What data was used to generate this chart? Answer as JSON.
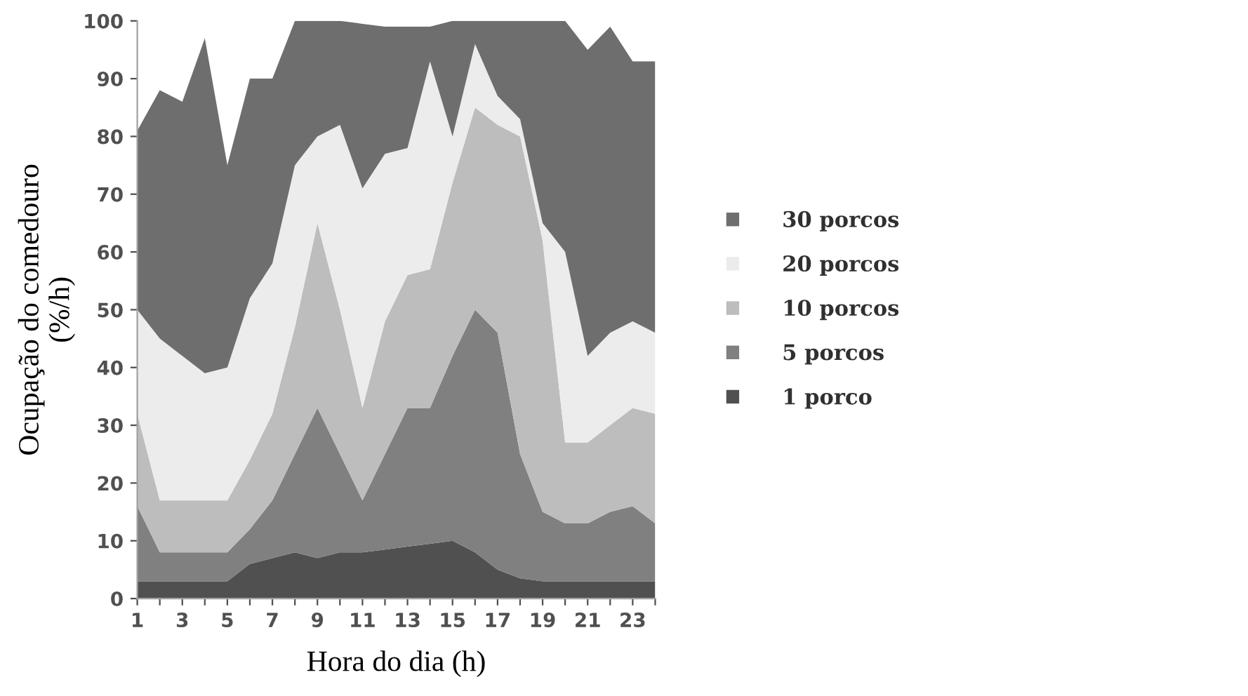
{
  "chart_data": {
    "type": "area",
    "stacked": true,
    "xlabel": "Hora do dia (h)",
    "ylabel": "Ocupação do comedouro\n(%/h)",
    "categories": [
      "1",
      null,
      "3",
      null,
      "5",
      null,
      "7",
      null,
      "9",
      null,
      "11",
      null,
      "13",
      null,
      "15",
      null,
      "17",
      null,
      "19",
      null,
      "21",
      null,
      "23",
      null
    ],
    "ylim": [
      0,
      100
    ],
    "yticks": [
      0,
      10,
      20,
      30,
      40,
      50,
      60,
      70,
      80,
      90,
      100
    ],
    "grid": false,
    "legend": "right",
    "series": [
      {
        "name": "1 porco",
        "color": "#505050",
        "values": [
          3,
          3,
          3,
          3,
          3,
          6,
          7,
          8,
          7,
          8,
          8,
          8.5,
          9,
          9.5,
          10,
          8,
          5,
          3.5,
          3,
          3,
          3,
          3,
          3,
          3
        ]
      },
      {
        "name": "5 porcos",
        "color": "#808080",
        "values": [
          13,
          5,
          5,
          5,
          5,
          6,
          10,
          17,
          26,
          17,
          9,
          16.5,
          24,
          23.5,
          32,
          42,
          41,
          21.5,
          12,
          10,
          10,
          12,
          13,
          10
        ]
      },
      {
        "name": "10 porcos",
        "color": "#bdbdbd",
        "values": [
          16,
          9,
          9,
          9,
          9,
          12,
          15,
          22,
          32,
          25,
          16,
          23,
          23,
          24,
          30,
          35,
          36,
          55,
          47,
          14,
          14,
          15,
          17,
          19
        ]
      },
      {
        "name": "20 porcos",
        "color": "#ececec",
        "values": [
          18,
          28,
          25,
          22,
          23,
          28,
          26,
          28,
          15,
          32,
          38,
          29,
          22,
          36,
          8,
          11,
          5,
          3,
          3,
          33,
          15,
          16,
          15,
          14
        ]
      },
      {
        "name": "30 porcos",
        "color": "#6e6e6e",
        "values": [
          31,
          43,
          44,
          58,
          35,
          38,
          32,
          25,
          20,
          18,
          28.5,
          22,
          21,
          6,
          20,
          4,
          13,
          17,
          35,
          40,
          53,
          53,
          45,
          47
        ]
      }
    ]
  }
}
